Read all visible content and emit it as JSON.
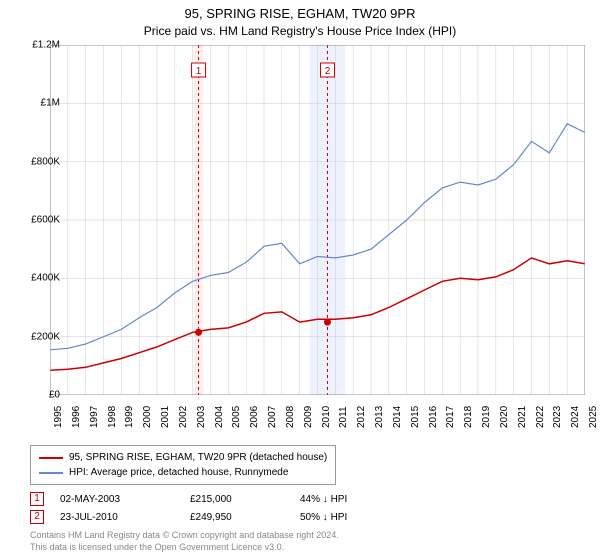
{
  "title": "95, SPRING RISE, EGHAM, TW20 9PR",
  "subtitle": "Price paid vs. HM Land Registry's House Price Index (HPI)",
  "chart": {
    "type": "line",
    "background_color": "#ffffff",
    "grid_color": "#cccccc",
    "grid_width": 0.5,
    "x_years": [
      1995,
      1996,
      1997,
      1998,
      1999,
      2000,
      2001,
      2002,
      2003,
      2004,
      2005,
      2006,
      2007,
      2008,
      2009,
      2010,
      2011,
      2012,
      2013,
      2014,
      2015,
      2016,
      2017,
      2018,
      2019,
      2020,
      2021,
      2022,
      2023,
      2024,
      2025
    ],
    "y_ticks": [
      0,
      200000,
      400000,
      600000,
      800000,
      1000000,
      1200000
    ],
    "y_tick_labels": [
      "£0",
      "£200K",
      "£400K",
      "£600K",
      "£800K",
      "£1M",
      "£1.2M"
    ],
    "ylim": [
      0,
      1200000
    ],
    "series": [
      {
        "name": "property",
        "label": "95, SPRING RISE, EGHAM, TW20 9PR (detached house)",
        "color": "#cc0000",
        "line_width": 1.5,
        "data": [
          [
            1995,
            85000
          ],
          [
            1996,
            88000
          ],
          [
            1997,
            95000
          ],
          [
            1998,
            110000
          ],
          [
            1999,
            125000
          ],
          [
            2000,
            145000
          ],
          [
            2001,
            165000
          ],
          [
            2002,
            190000
          ],
          [
            2003,
            215000
          ],
          [
            2004,
            225000
          ],
          [
            2005,
            230000
          ],
          [
            2006,
            250000
          ],
          [
            2007,
            280000
          ],
          [
            2008,
            285000
          ],
          [
            2009,
            250000
          ],
          [
            2010,
            260000
          ],
          [
            2011,
            260000
          ],
          [
            2012,
            265000
          ],
          [
            2013,
            275000
          ],
          [
            2014,
            300000
          ],
          [
            2015,
            330000
          ],
          [
            2016,
            360000
          ],
          [
            2017,
            390000
          ],
          [
            2018,
            400000
          ],
          [
            2019,
            395000
          ],
          [
            2020,
            405000
          ],
          [
            2021,
            430000
          ],
          [
            2022,
            470000
          ],
          [
            2023,
            450000
          ],
          [
            2024,
            460000
          ],
          [
            2025,
            450000
          ]
        ]
      },
      {
        "name": "hpi",
        "label": "HPI: Average price, detached house, Runnymede",
        "color": "#6688cc",
        "line_width": 1.2,
        "data": [
          [
            1995,
            155000
          ],
          [
            1996,
            160000
          ],
          [
            1997,
            175000
          ],
          [
            1998,
            200000
          ],
          [
            1999,
            225000
          ],
          [
            2000,
            265000
          ],
          [
            2001,
            300000
          ],
          [
            2002,
            350000
          ],
          [
            2003,
            390000
          ],
          [
            2004,
            410000
          ],
          [
            2005,
            420000
          ],
          [
            2006,
            455000
          ],
          [
            2007,
            510000
          ],
          [
            2008,
            520000
          ],
          [
            2009,
            450000
          ],
          [
            2010,
            475000
          ],
          [
            2011,
            470000
          ],
          [
            2012,
            480000
          ],
          [
            2013,
            500000
          ],
          [
            2014,
            550000
          ],
          [
            2015,
            600000
          ],
          [
            2016,
            660000
          ],
          [
            2017,
            710000
          ],
          [
            2018,
            730000
          ],
          [
            2019,
            720000
          ],
          [
            2020,
            740000
          ],
          [
            2021,
            790000
          ],
          [
            2022,
            870000
          ],
          [
            2023,
            830000
          ],
          [
            2024,
            930000
          ],
          [
            2025,
            900000
          ]
        ]
      }
    ],
    "markers": [
      {
        "n": 1,
        "year": 2003.33,
        "band_width_years": 0.5,
        "band_color": "#ffeeee",
        "line_color": "#cc0000"
      },
      {
        "n": 2,
        "year": 2010.56,
        "band_width_years": 2.0,
        "band_color": "#eef2ff",
        "line_color": "#cc0000"
      }
    ],
    "sale_dots": [
      {
        "year": 2003.33,
        "value": 215000,
        "color": "#cc0000"
      },
      {
        "year": 2010.56,
        "value": 249950,
        "color": "#cc0000"
      }
    ]
  },
  "legend": {
    "items": [
      {
        "color": "#cc0000",
        "label": "95, SPRING RISE, EGHAM, TW20 9PR (detached house)"
      },
      {
        "color": "#6688cc",
        "label": "HPI: Average price, detached house, Runnymede"
      }
    ]
  },
  "sales": [
    {
      "marker": "1",
      "date": "02-MAY-2003",
      "price": "£215,000",
      "pct": "44% ↓ HPI"
    },
    {
      "marker": "2",
      "date": "23-JUL-2010",
      "price": "£249,950",
      "pct": "50% ↓ HPI"
    }
  ],
  "footer": {
    "line1": "Contains HM Land Registry data © Crown copyright and database right 2024.",
    "line2": "This data is licensed under the Open Government Licence v3.0."
  }
}
